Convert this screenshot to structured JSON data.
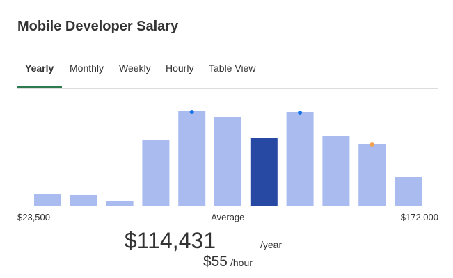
{
  "title": "Mobile Developer Salary",
  "tabs": [
    "Yearly",
    "Monthly",
    "Weekly",
    "Hourly",
    "Table View"
  ],
  "active_tab_color": "#2d7a4f",
  "chart_data": {
    "type": "bar",
    "values": [
      18,
      17,
      8,
      96,
      137,
      128,
      99,
      136,
      102,
      90,
      42
    ],
    "color": "#aabbf0",
    "highlight_index": 6,
    "highlight_color": "#2748a3",
    "highlight_label": "Average",
    "markers": [
      {
        "index": 4,
        "color": "#1a73e8"
      },
      {
        "index": 7,
        "color": "#1a73e8"
      },
      {
        "index": 9,
        "color": "#f4a14c"
      }
    ],
    "ylim": [
      0,
      140
    ],
    "xlim": [
      23500,
      172000
    ],
    "xticks": [
      {
        "value": 23500,
        "label": "$23,500"
      },
      {
        "value": 172000,
        "label": "$172,000"
      }
    ]
  },
  "average": {
    "yearly": "$114,431",
    "yearly_unit": "/year",
    "hourly": "$55",
    "hourly_unit": "/hour"
  }
}
